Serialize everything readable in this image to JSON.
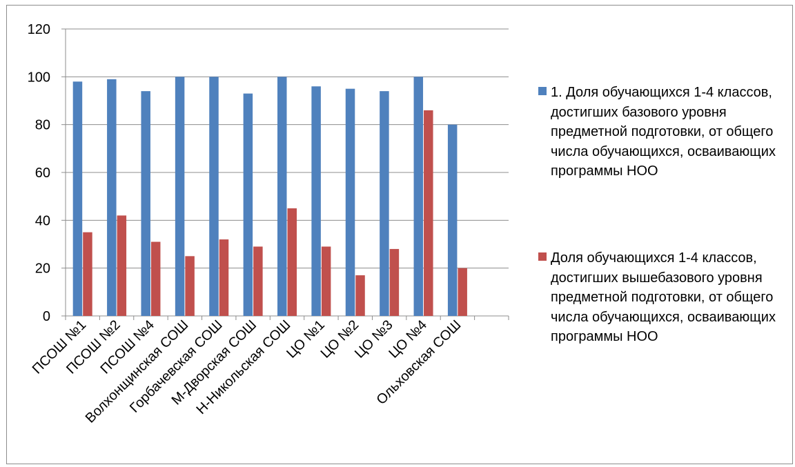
{
  "chart_data": {
    "type": "bar",
    "categories": [
      "ПСОШ №1",
      "ПСОШ №2",
      "ПСОШ №4",
      "Волхонщинская СОШ",
      "Горбачевская СОШ",
      "М-Дворская СОШ",
      "Н-Никольская СОШ",
      "ЦО №1",
      "ЦО №2",
      "ЦО №3",
      "ЦО №4",
      "Ольховская СОШ"
    ],
    "series": [
      {
        "name": "1. Доля обучающихся 1-4 классов, достигших базового уровня предметной подготовки, от общего числа обучающихся, осваивающих программы НОО",
        "color": "#4f81bd",
        "values": [
          98,
          99,
          94,
          100,
          100,
          93,
          100,
          96,
          95,
          94,
          100,
          80
        ]
      },
      {
        "name": "Доля обучающихся 1-4 классов, достигших вышебазового уровня предметной подготовки, от общего числа обучающихся, осваивающих программы НОО",
        "color": "#c0504d",
        "values": [
          35,
          42,
          31,
          25,
          32,
          29,
          45,
          29,
          17,
          28,
          86,
          20
        ]
      }
    ],
    "yticks": [
      "0",
      "20",
      "40",
      "60",
      "80",
      "100",
      "120"
    ],
    "ylim": [
      0,
      120
    ],
    "slots": 13,
    "grid": true,
    "legend_position": "right"
  }
}
